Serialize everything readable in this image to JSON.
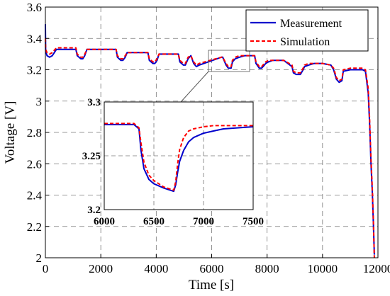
{
  "chart_data": [
    {
      "type": "line",
      "xlabel": "Time [s]",
      "ylabel": "Voltage [V]",
      "xlim": [
        0,
        12000
      ],
      "ylim": [
        2,
        3.6
      ],
      "xticks": [
        "0",
        "2000",
        "4000",
        "6000",
        "8000",
        "10000",
        "12000"
      ],
      "yticks": [
        "2",
        "2.2",
        "2.4",
        "2.6",
        "2.8",
        "3",
        "3.2",
        "3.4",
        "3.6"
      ],
      "grid": true,
      "legend_position": "top-right",
      "series": [
        {
          "name": "Measurement",
          "color": "#0000cc",
          "style": "solid",
          "x": [
            0,
            10,
            60,
            150,
            250,
            400,
            1100,
            1150,
            1280,
            1350,
            1420,
            1500,
            2550,
            2600,
            2720,
            2800,
            2880,
            2950,
            3700,
            3750,
            3880,
            3950,
            4030,
            4100,
            4800,
            4850,
            4980,
            5050,
            5150,
            5250,
            5350,
            5450,
            5550,
            6350,
            6400,
            6520,
            6600,
            6700,
            6750,
            6850,
            7000,
            7200,
            7550,
            7600,
            7720,
            7800,
            7900,
            7950,
            8050,
            8200,
            8400,
            8600,
            8900,
            8950,
            9050,
            9200,
            9300,
            9350,
            9500,
            9700,
            10000,
            10300,
            10400,
            10500,
            10600,
            10700,
            10750,
            11000,
            11300,
            11450,
            11550,
            11650,
            11700,
            11750,
            11800,
            11840,
            11870
          ],
          "y": [
            3.49,
            3.32,
            3.29,
            3.28,
            3.29,
            3.33,
            3.33,
            3.29,
            3.27,
            3.27,
            3.29,
            3.33,
            3.33,
            3.28,
            3.26,
            3.26,
            3.28,
            3.31,
            3.31,
            3.26,
            3.24,
            3.24,
            3.26,
            3.3,
            3.3,
            3.25,
            3.23,
            3.23,
            3.27,
            3.29,
            3.24,
            3.22,
            3.23,
            3.28,
            3.28,
            3.23,
            3.21,
            3.21,
            3.25,
            3.27,
            3.28,
            3.29,
            3.29,
            3.24,
            3.21,
            3.21,
            3.23,
            3.24,
            3.25,
            3.26,
            3.26,
            3.26,
            3.22,
            3.18,
            3.17,
            3.17,
            3.2,
            3.22,
            3.23,
            3.24,
            3.24,
            3.23,
            3.2,
            3.14,
            3.12,
            3.13,
            3.19,
            3.2,
            3.2,
            3.2,
            3.19,
            3.05,
            2.85,
            2.6,
            2.4,
            2.2,
            2.02
          ]
        },
        {
          "name": "Simulation",
          "color": "#ff0000",
          "style": "dashed",
          "x": [
            0,
            10,
            60,
            150,
            250,
            400,
            1100,
            1150,
            1280,
            1350,
            1420,
            1500,
            2550,
            2600,
            2720,
            2800,
            2880,
            2950,
            3700,
            3750,
            3880,
            3950,
            4030,
            4100,
            4800,
            4850,
            4980,
            5050,
            5150,
            5250,
            5350,
            5450,
            5550,
            6350,
            6400,
            6520,
            6600,
            6700,
            6750,
            6850,
            7000,
            7200,
            7550,
            7600,
            7720,
            7800,
            7900,
            7950,
            8050,
            8200,
            8400,
            8600,
            8900,
            8950,
            9050,
            9200,
            9300,
            9350,
            9500,
            9700,
            10000,
            10300,
            10400,
            10500,
            10600,
            10700,
            10750,
            11000,
            11300,
            11450,
            11550,
            11650,
            11700,
            11750,
            11800,
            11840,
            11870
          ],
          "y": [
            3.4,
            3.33,
            3.31,
            3.3,
            3.31,
            3.34,
            3.34,
            3.3,
            3.28,
            3.28,
            3.3,
            3.33,
            3.33,
            3.29,
            3.27,
            3.27,
            3.29,
            3.31,
            3.31,
            3.27,
            3.25,
            3.25,
            3.27,
            3.3,
            3.3,
            3.26,
            3.24,
            3.24,
            3.28,
            3.29,
            3.25,
            3.23,
            3.24,
            3.28,
            3.28,
            3.24,
            3.22,
            3.22,
            3.26,
            3.28,
            3.29,
            3.29,
            3.29,
            3.25,
            3.22,
            3.22,
            3.24,
            3.25,
            3.26,
            3.26,
            3.26,
            3.26,
            3.23,
            3.19,
            3.18,
            3.18,
            3.21,
            3.23,
            3.24,
            3.24,
            3.24,
            3.23,
            3.21,
            3.15,
            3.13,
            3.14,
            3.2,
            3.21,
            3.21,
            3.21,
            3.2,
            3.08,
            2.88,
            2.63,
            2.43,
            2.22,
            2.0
          ]
        }
      ]
    },
    {
      "type": "line",
      "role": "inset",
      "xlim": [
        6000,
        7500
      ],
      "ylim": [
        3.2,
        3.3
      ],
      "xticks": [
        "6000",
        "6500",
        "7000",
        "7500"
      ],
      "yticks": [
        "3.2",
        "3.25",
        "3.3"
      ],
      "grid": true,
      "series": [
        {
          "name": "Measurement",
          "color": "#0000cc",
          "style": "solid",
          "x": [
            6000,
            6300,
            6350,
            6370,
            6400,
            6450,
            6500,
            6600,
            6700,
            6720,
            6740,
            6760,
            6800,
            6850,
            6900,
            7000,
            7100,
            7200,
            7350,
            7500
          ],
          "y": [
            3.279,
            3.279,
            3.275,
            3.255,
            3.238,
            3.228,
            3.224,
            3.22,
            3.217,
            3.223,
            3.235,
            3.245,
            3.255,
            3.263,
            3.267,
            3.271,
            3.273,
            3.275,
            3.276,
            3.277
          ]
        },
        {
          "name": "Simulation",
          "color": "#ff0000",
          "style": "dashed",
          "x": [
            6000,
            6300,
            6350,
            6370,
            6400,
            6450,
            6500,
            6600,
            6700,
            6720,
            6740,
            6760,
            6800,
            6850,
            6900,
            7000,
            7100,
            7200,
            7350,
            7500
          ],
          "y": [
            3.28,
            3.28,
            3.276,
            3.262,
            3.244,
            3.232,
            3.227,
            3.221,
            3.218,
            3.226,
            3.243,
            3.256,
            3.267,
            3.273,
            3.275,
            3.277,
            3.278,
            3.278,
            3.278,
            3.278
          ]
        }
      ]
    }
  ]
}
